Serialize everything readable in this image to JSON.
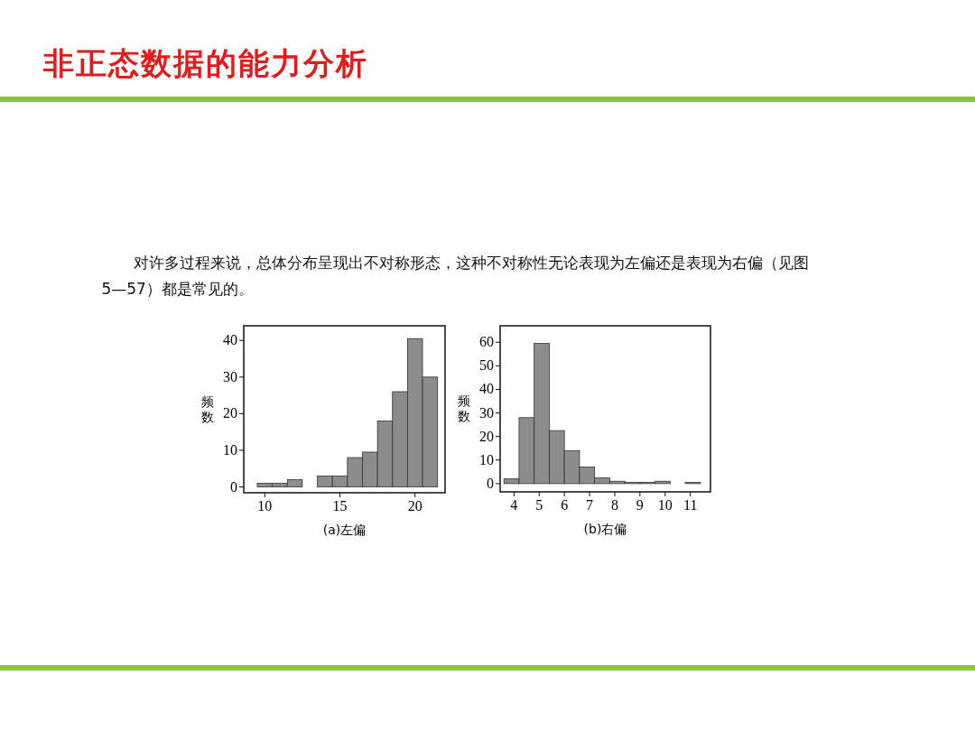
{
  "chart_data": [
    {
      "type": "histogram",
      "title": "非正态数据的能力分析",
      "annotations": [
        "对许多过程来说，总体分布呈现出不对称形态，这种不对称性无论表现为左偏还是表现为右偏（见图 5—57）都是常见的。"
      ],
      "xlabel": "(a)左偏",
      "ylabel": "频数",
      "color": "#8c8c8c",
      "bins": [
        9.5,
        10.5,
        11.5,
        12.5,
        13.5,
        14.5,
        15.5,
        16.5,
        17.5,
        18.5,
        19.5,
        20.5,
        21.5
      ],
      "values": [
        1,
        1,
        2,
        0,
        3,
        3,
        8,
        9.5,
        18,
        26,
        40.5,
        30
      ],
      "xlim": [
        8.6,
        22
      ],
      "xticks": [
        10,
        15,
        20
      ],
      "ylim": [
        -1.6,
        44
      ],
      "yticks": [
        0,
        10,
        20,
        30,
        40
      ],
      "grid": false
    },
    {
      "type": "histogram",
      "xlabel": "(b)右偏",
      "ylabel": "频数",
      "color": "#8c8c8c",
      "bins": [
        3.6,
        4.2,
        4.8,
        5.4,
        6.0,
        6.6,
        7.2,
        7.8,
        8.4,
        9.0,
        9.6,
        10.2,
        10.8,
        11.4
      ],
      "values": [
        2,
        28,
        59.5,
        22.5,
        14,
        7,
        2.5,
        1,
        0.5,
        0.5,
        1,
        0,
        0.5
      ],
      "xlim": [
        3.45,
        11.8
      ],
      "xticks": [
        4,
        5,
        6,
        7,
        8,
        9,
        10,
        11
      ],
      "ylim": [
        -3.5,
        67
      ],
      "yticks": [
        0,
        10,
        20,
        30,
        40,
        50,
        60
      ],
      "grid": false
    }
  ]
}
